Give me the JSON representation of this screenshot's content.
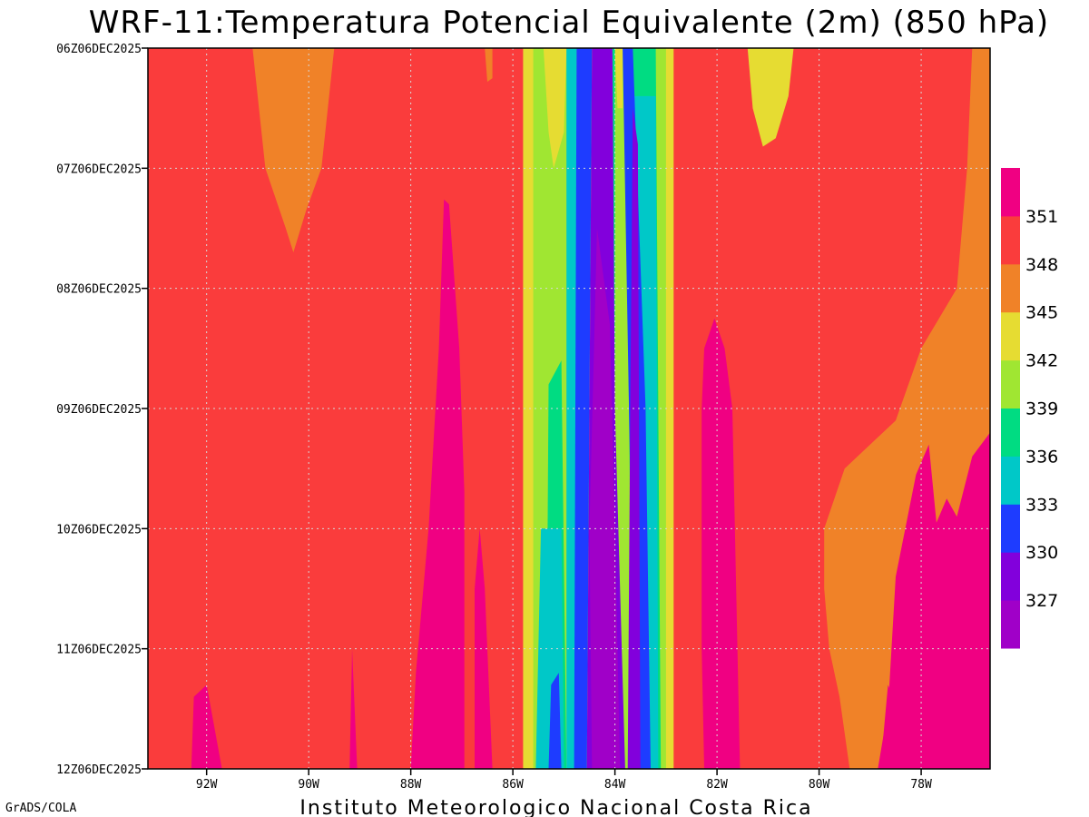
{
  "chart_data": {
    "type": "heatmap",
    "title": "WRF-11:Temperatura Potencial Equivalente (2m) (850 hPa)",
    "footer": "Instituto Meteorologico Nacional Costa Rica",
    "credit": "GrADS/COLA",
    "x_ticks": [
      {
        "value": -92,
        "label": "92W"
      },
      {
        "value": -90,
        "label": "90W"
      },
      {
        "value": -88,
        "label": "88W"
      },
      {
        "value": -86,
        "label": "86W"
      },
      {
        "value": -84,
        "label": "84W"
      },
      {
        "value": -82,
        "label": "82W"
      },
      {
        "value": -80,
        "label": "80W"
      },
      {
        "value": -78,
        "label": "78W"
      }
    ],
    "xlim": [
      -93.15,
      -76.65
    ],
    "y_ticks": [
      {
        "value": 6,
        "label": "06Z06DEC2025"
      },
      {
        "value": 7,
        "label": "07Z06DEC2025"
      },
      {
        "value": 8,
        "label": "08Z06DEC2025"
      },
      {
        "value": 9,
        "label": "09Z06DEC2025"
      },
      {
        "value": 10,
        "label": "10Z06DEC2025"
      },
      {
        "value": 11,
        "label": "11Z06DEC2025"
      },
      {
        "value": 12,
        "label": "12Z06DEC2025"
      }
    ],
    "ylim": [
      6,
      12
    ],
    "grid": true,
    "colorbar": {
      "colors": [
        "#a000c8",
        "#8200dc",
        "#1e3cff",
        "#00c8c8",
        "#00dc82",
        "#a0e632",
        "#e6dc32",
        "#f08228",
        "#fa3c3c",
        "#f00082"
      ],
      "tick_labels": [
        "327",
        "330",
        "333",
        "336",
        "339",
        "342",
        "345",
        "348",
        "351"
      ]
    },
    "background_level_color": "#fa3c3c",
    "regions": [
      {
        "color": "#f08228",
        "points": [
          [
            -91.1,
            6
          ],
          [
            -89.5,
            6
          ],
          [
            -89.75,
            7
          ],
          [
            -90.05,
            7.35
          ],
          [
            -90.3,
            7.7
          ],
          [
            -90.45,
            7.5
          ],
          [
            -90.85,
            7
          ]
        ]
      },
      {
        "color": "#f00082",
        "points": [
          [
            -87.35,
            7.26
          ],
          [
            -87.25,
            7.3
          ],
          [
            -87.05,
            8.5
          ],
          [
            -86.95,
            9.7
          ],
          [
            -86.95,
            12
          ],
          [
            -88.0,
            12
          ],
          [
            -87.9,
            11.2
          ],
          [
            -87.65,
            10
          ],
          [
            -87.45,
            8.5
          ]
        ]
      },
      {
        "color": "#f00082",
        "points": [
          [
            -86.65,
            10
          ],
          [
            -86.55,
            10.5
          ],
          [
            -86.4,
            12
          ],
          [
            -86.75,
            12
          ],
          [
            -86.75,
            10.5
          ]
        ]
      },
      {
        "color": "#f00082",
        "points": [
          [
            -92.25,
            11.4
          ],
          [
            -92.0,
            11.3
          ],
          [
            -91.7,
            12
          ],
          [
            -92.3,
            12
          ]
        ]
      },
      {
        "color": "#f00082",
        "points": [
          [
            -89.15,
            11
          ],
          [
            -89.05,
            12
          ],
          [
            -89.2,
            12
          ]
        ]
      },
      {
        "color": "#f08228",
        "points": [
          [
            -86.55,
            6
          ],
          [
            -86.4,
            6
          ],
          [
            -86.4,
            6.25
          ],
          [
            -86.5,
            6.28
          ]
        ]
      },
      {
        "color": "#f08228",
        "points": [
          [
            -82.3,
            6
          ],
          [
            -76.65,
            6
          ],
          [
            -76.65,
            12
          ],
          [
            -79.0,
            12
          ],
          [
            -79.4,
            12
          ],
          [
            -79.6,
            11.4
          ],
          [
            -79.8,
            11.0
          ],
          [
            -79.9,
            10.5
          ],
          [
            -79.9,
            10.0
          ],
          [
            -79.5,
            9.5
          ],
          [
            -78.5,
            9.1
          ],
          [
            -78.0,
            8.5
          ],
          [
            -77.3,
            8.0
          ],
          [
            -77.1,
            7.0
          ],
          [
            -77.0,
            6
          ],
          [
            -77.0,
            6
          ],
          [
            -82.3,
            6
          ]
        ]
      },
      {
        "color": "#f00082",
        "points": [
          [
            -82.05,
            8.25
          ],
          [
            -81.85,
            8.5
          ],
          [
            -81.7,
            9.0
          ],
          [
            -81.65,
            10
          ],
          [
            -81.55,
            12
          ],
          [
            -82.25,
            12
          ],
          [
            -82.3,
            11
          ],
          [
            -82.3,
            9.0
          ],
          [
            -82.25,
            8.5
          ]
        ]
      },
      {
        "color": "#e6dc32",
        "points": [
          [
            -81.4,
            6
          ],
          [
            -80.5,
            6
          ],
          [
            -80.6,
            6.4
          ],
          [
            -80.85,
            6.75
          ],
          [
            -81.1,
            6.82
          ],
          [
            -81.3,
            6.5
          ]
        ]
      },
      {
        "color": "#f00082",
        "points": [
          [
            -76.65,
            9.2
          ],
          [
            -77.0,
            9.4
          ],
          [
            -77.3,
            9.9
          ],
          [
            -77.5,
            9.75
          ],
          [
            -77.7,
            9.95
          ],
          [
            -77.85,
            9.3
          ],
          [
            -78.1,
            9.55
          ],
          [
            -78.5,
            10.4
          ],
          [
            -78.65,
            11.5
          ],
          [
            -78.85,
            12
          ],
          [
            -76.65,
            12
          ]
        ]
      },
      {
        "color": "#f00082",
        "points": [
          [
            -78.65,
            11.3
          ],
          [
            -78.55,
            11.4
          ],
          [
            -78.35,
            12
          ],
          [
            -78.8,
            12
          ]
        ]
      },
      {
        "color": "#a0e632",
        "points": [
          [
            -85.75,
            6
          ],
          [
            -82.95,
            6
          ],
          [
            -82.95,
            12
          ],
          [
            -85.75,
            12
          ]
        ]
      },
      {
        "color": "#e6dc32",
        "points": [
          [
            -85.8,
            6
          ],
          [
            -85.6,
            6
          ],
          [
            -85.6,
            12
          ],
          [
            -85.8,
            12
          ]
        ]
      },
      {
        "color": "#e6dc32",
        "points": [
          [
            -85.4,
            6
          ],
          [
            -84.95,
            6
          ],
          [
            -85.0,
            6.7
          ],
          [
            -85.2,
            7
          ],
          [
            -85.3,
            6.7
          ]
        ]
      },
      {
        "color": "#e6dc32",
        "points": [
          [
            -84.0,
            6
          ],
          [
            -83.85,
            6
          ],
          [
            -83.85,
            6.5
          ],
          [
            -83.95,
            6.5
          ]
        ]
      },
      {
        "color": "#e6dc32",
        "points": [
          [
            -83.0,
            6
          ],
          [
            -82.85,
            6
          ],
          [
            -82.85,
            12
          ],
          [
            -83.0,
            12
          ]
        ]
      },
      {
        "color": "#00dc82",
        "points": [
          [
            -85.3,
            8.8
          ],
          [
            -85.05,
            8.6
          ],
          [
            -84.95,
            12
          ],
          [
            -85.35,
            12
          ]
        ]
      },
      {
        "color": "#00c8c8",
        "points": [
          [
            -85.45,
            10
          ],
          [
            -85.05,
            10
          ],
          [
            -85.0,
            12
          ],
          [
            -85.55,
            12
          ]
        ]
      },
      {
        "color": "#00dc82",
        "points": [
          [
            -83.8,
            6
          ],
          [
            -83.2,
            6
          ],
          [
            -83.1,
            12
          ],
          [
            -83.65,
            12
          ]
        ]
      },
      {
        "color": "#00c8c8",
        "points": [
          [
            -84.95,
            6
          ],
          [
            -84.75,
            6
          ],
          [
            -84.75,
            12
          ],
          [
            -84.95,
            12
          ]
        ]
      },
      {
        "color": "#00c8c8",
        "points": [
          [
            -83.8,
            6.4
          ],
          [
            -83.2,
            6.4
          ],
          [
            -83.15,
            12
          ],
          [
            -83.5,
            12
          ],
          [
            -83.6,
            9
          ]
        ]
      },
      {
        "color": "#00dc82",
        "points": [
          [
            -84.1,
            6
          ],
          [
            -84.0,
            6
          ],
          [
            -84.0,
            12
          ],
          [
            -84.1,
            12
          ]
        ]
      },
      {
        "color": "#1e3cff",
        "points": [
          [
            -84.75,
            6
          ],
          [
            -84.45,
            6
          ],
          [
            -84.55,
            12
          ],
          [
            -84.8,
            12
          ]
        ]
      },
      {
        "color": "#1e3cff",
        "points": [
          [
            -83.85,
            6
          ],
          [
            -83.65,
            6
          ],
          [
            -83.4,
            9
          ],
          [
            -83.3,
            12
          ],
          [
            -83.6,
            12
          ]
        ]
      },
      {
        "color": "#1e3cff",
        "points": [
          [
            -85.25,
            11.3
          ],
          [
            -85.1,
            11.2
          ],
          [
            -85.05,
            12
          ],
          [
            -85.3,
            12
          ]
        ]
      },
      {
        "color": "#8200dc",
        "points": [
          [
            -84.45,
            6
          ],
          [
            -84.05,
            6
          ],
          [
            -84.0,
            9
          ],
          [
            -83.8,
            12
          ],
          [
            -84.55,
            12
          ]
        ]
      },
      {
        "color": "#a000c8",
        "points": [
          [
            -84.35,
            7.5
          ],
          [
            -84.1,
            8.3
          ],
          [
            -84.0,
            10
          ],
          [
            -83.9,
            12
          ],
          [
            -84.45,
            12
          ],
          [
            -84.5,
            10
          ]
        ]
      },
      {
        "color": "#8200dc",
        "points": [
          [
            -83.65,
            6.5
          ],
          [
            -83.55,
            6.8
          ],
          [
            -83.5,
            12
          ],
          [
            -83.75,
            12
          ],
          [
            -83.7,
            9
          ]
        ]
      }
    ]
  }
}
